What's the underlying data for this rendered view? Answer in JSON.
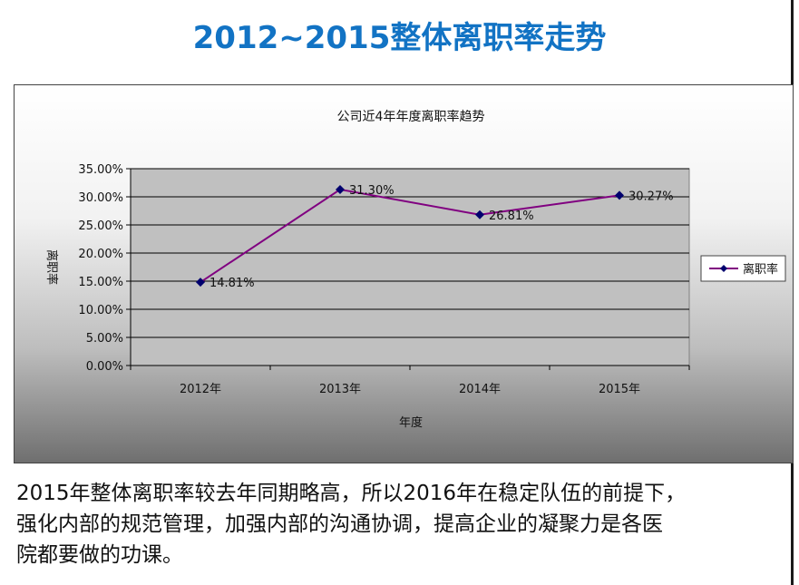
{
  "page": {
    "heading": "2012~2015整体离职率走势",
    "paragraph_lines": [
      "2015年整体离职率较去年同期略高，所以2016年在稳定队伍的前提下，",
      "强化内部的规范管理，加强内部的沟通协调，提高企业的凝聚力是各医",
      "院都要做的功课。"
    ]
  },
  "chart_data": {
    "type": "line",
    "title": "公司近4年年度离职率趋势",
    "xlabel": "年度",
    "ylabel": "离职率",
    "categories": [
      "2012年",
      "2013年",
      "2014年",
      "2015年"
    ],
    "series": [
      {
        "name": "离职率",
        "values": [
          14.81,
          31.3,
          26.81,
          30.27
        ],
        "labels": [
          "14.81%",
          "31.30%",
          "26.81%",
          "30.27%"
        ],
        "color": "#800080",
        "marker_color": "#00006e"
      }
    ],
    "ylim": [
      0,
      35
    ],
    "yticks": [
      "0.00%",
      "5.00%",
      "10.00%",
      "15.00%",
      "20.00%",
      "25.00%",
      "30.00%",
      "35.00%"
    ],
    "grid": true,
    "legend": "right",
    "plot_background": "#c0c0c0"
  }
}
